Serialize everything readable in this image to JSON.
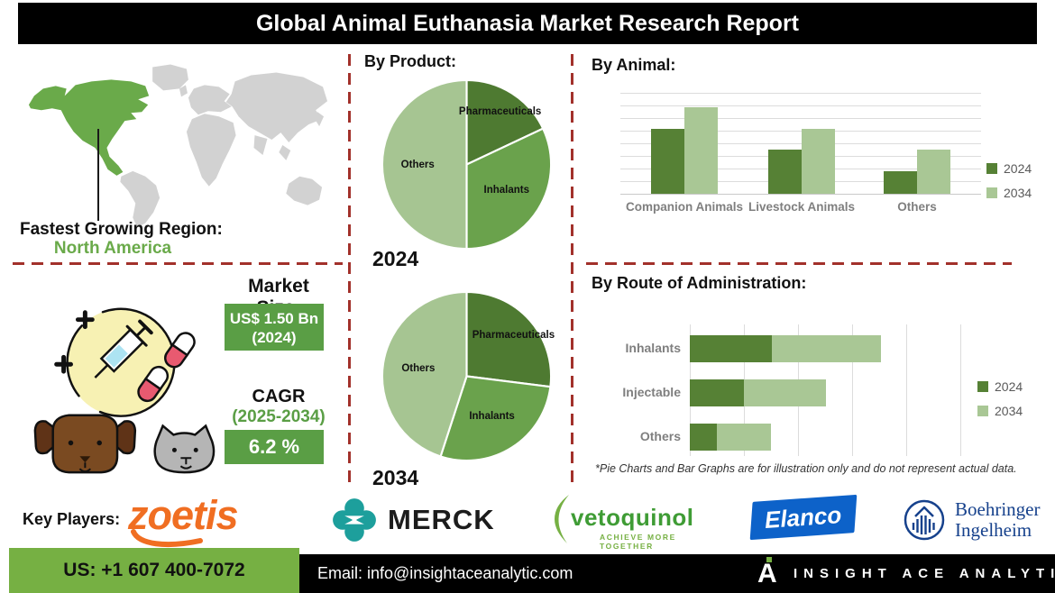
{
  "header": {
    "title": "Global Animal Euthanasia Market Research Report"
  },
  "map_section": {
    "label": "Fastest Growing Region:",
    "region": "North America"
  },
  "sections": {
    "by_product": {
      "heading": "By Product:"
    },
    "by_animal": {
      "heading": "By Animal:"
    },
    "by_route": {
      "heading": "By Route of Administration:",
      "footnote": "*Pie Charts and Bar Graphs are for illustration only and do not represent actual data."
    }
  },
  "chart_data": [
    {
      "type": "pie",
      "title": "By Product: 2024",
      "caption": "2024",
      "labels": [
        "Pharmaceuticals",
        "Inhalants",
        "Others"
      ],
      "values": [
        18,
        32,
        50
      ],
      "colors": [
        "#4e7a31",
        "#6aa24c",
        "#a6c592"
      ],
      "legend_position": "none"
    },
    {
      "type": "pie",
      "title": "By Product: 2034",
      "caption": "2034",
      "labels": [
        "Pharmaceuticals",
        "Inhalants",
        "Others"
      ],
      "values": [
        27,
        28,
        45
      ],
      "colors": [
        "#4e7a31",
        "#6aa24c",
        "#a6c592"
      ],
      "legend_position": "none"
    },
    {
      "type": "bar",
      "orientation": "vertical",
      "title": "By Animal:",
      "categories": [
        "Companion Animals",
        "Livestock Animals",
        "Others"
      ],
      "series": [
        {
          "name": "2024",
          "color": "#568135",
          "values": [
            64,
            43,
            22
          ]
        },
        {
          "name": "2034",
          "color": "#a9c795",
          "values": [
            85,
            64,
            43
          ]
        }
      ],
      "ylim": [
        0,
        100
      ],
      "grid": true,
      "legend_position": "right"
    },
    {
      "type": "bar",
      "orientation": "horizontal",
      "stacked": true,
      "title": "By Route of Administration:",
      "categories": [
        "Inhalants",
        "Injectable",
        "Others"
      ],
      "series": [
        {
          "name": "2024",
          "color": "#568135",
          "values": [
            1.5,
            1.0,
            0.5
          ]
        },
        {
          "name": "2034",
          "color": "#a9c795",
          "values": [
            2.0,
            1.5,
            1.0
          ]
        }
      ],
      "xlim": [
        0,
        5
      ],
      "grid": true,
      "legend_position": "right"
    }
  ],
  "market": {
    "size_label": "Market Size:",
    "size_value": "US$ 1.50 Bn",
    "size_year": "(2024)",
    "cagr_label": "CAGR",
    "cagr_period": "(2025-2034)",
    "cagr_value": "6.2 %"
  },
  "key_players": {
    "label": "Key Players:",
    "zoetis_text": "zoetis",
    "merck_text": "MERCK",
    "vetoquinol_text": "vetoquinol",
    "vetoquinol_tagline": "ACHIEVE MORE TOGETHER",
    "elanco_text": "Elanco",
    "boehringer_line1": "Boehringer",
    "boehringer_line2": "Ingelheim"
  },
  "footer": {
    "phone": "US: +1 607 400-7072",
    "email": "Email: info@insightaceanalytic.com",
    "brand": "INSIGHT ACE ANALYTIC",
    "brand_glyph": "A"
  },
  "colors": {
    "map_green": "#6aaa4a",
    "map_gray": "#d2d2d2",
    "dashed_red": "#a2312b",
    "box_green": "#5a9e45",
    "footer_green": "#76b043",
    "region_green": "#6aaa4a",
    "merck_teal": "#1d9f9c",
    "zoetis_orange": "#f06e22",
    "elanco_blue": "#0d62c9",
    "boehringer_blue": "#16418c"
  }
}
